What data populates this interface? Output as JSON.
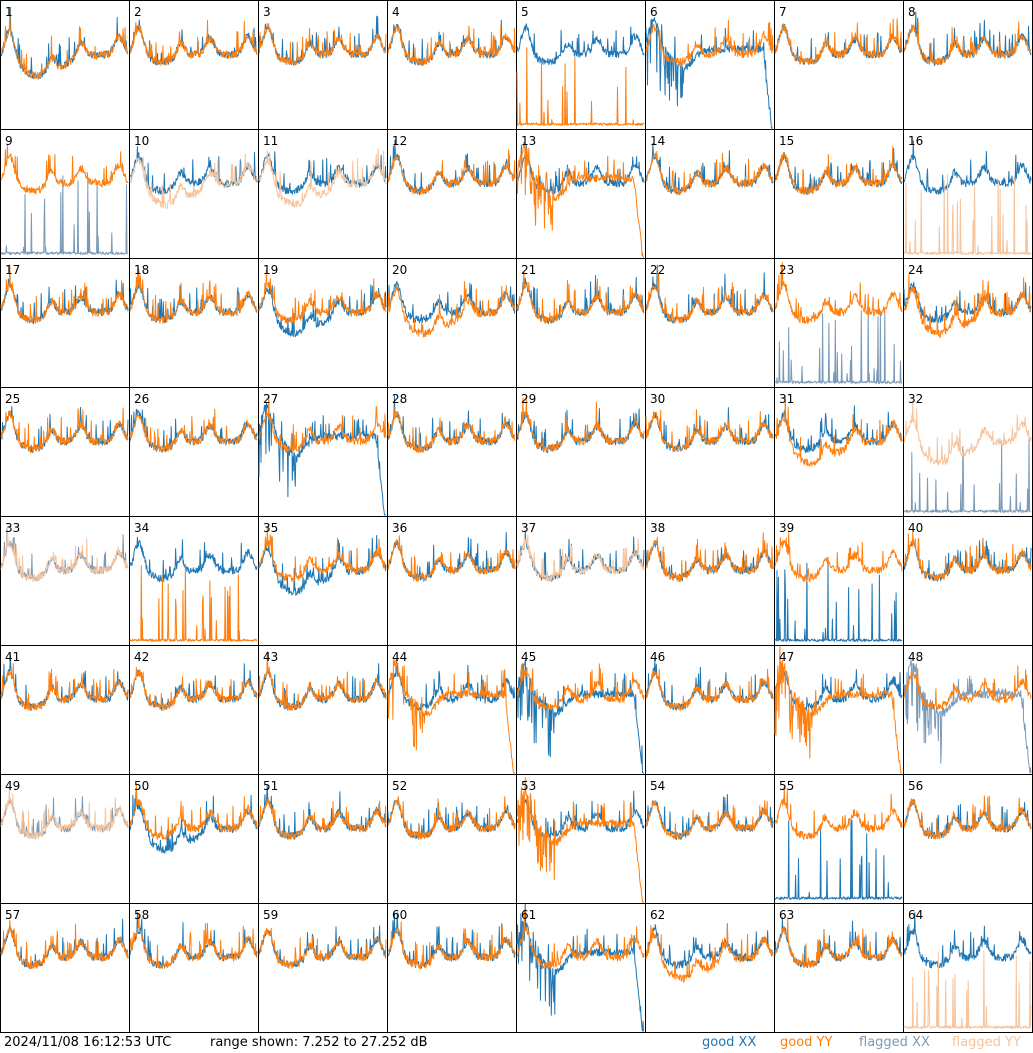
{
  "footer": {
    "timestamp": "2024/11/08 16:12:53 UTC",
    "range_text": "range shown: 7.252 to 27.252 dB"
  },
  "legend": [
    {
      "key": "good_xx",
      "label": "good XX",
      "color": "#1f77b4"
    },
    {
      "key": "good_yy",
      "label": "good YY",
      "color": "#ff7f0e"
    },
    {
      "key": "flagged_xx",
      "label": "flagged XX",
      "color": "#7a9ab8"
    },
    {
      "key": "flagged_yy",
      "label": "flagged YY",
      "color": "#f7c49c"
    }
  ],
  "chart_data": {
    "type": "line",
    "title": "",
    "xlabel": "",
    "ylabel": "",
    "ylim": [
      7.252,
      27.252
    ],
    "grid": "8x8 small multiples",
    "panels": [
      {
        "id": "1",
        "xx": "good",
        "yy": "good",
        "xx_shape": "depressed",
        "yy_shape": "depressed"
      },
      {
        "id": "2",
        "xx": "good",
        "yy": "good"
      },
      {
        "id": "3",
        "xx": "good",
        "yy": "good"
      },
      {
        "id": "4",
        "xx": "good",
        "yy": "good"
      },
      {
        "id": "5",
        "xx": "good",
        "yy": "good",
        "yy_shape": "spikes"
      },
      {
        "id": "6",
        "xx": "good",
        "yy": "good",
        "xx_shape": "decay"
      },
      {
        "id": "7",
        "xx": "good",
        "yy": "good"
      },
      {
        "id": "8",
        "xx": "good",
        "yy": "good"
      },
      {
        "id": "9",
        "xx": "flagged",
        "yy": "good",
        "xx_shape": "spikes"
      },
      {
        "id": "10",
        "xx": "good",
        "yy": "flagged",
        "yy_shape": "depressed"
      },
      {
        "id": "11",
        "xx": "good",
        "yy": "flagged",
        "yy_shape": "depressed"
      },
      {
        "id": "12",
        "xx": "good",
        "yy": "good"
      },
      {
        "id": "13",
        "xx": "good",
        "yy": "good",
        "yy_shape": "decay"
      },
      {
        "id": "14",
        "xx": "good",
        "yy": "good"
      },
      {
        "id": "15",
        "xx": "good",
        "yy": "good"
      },
      {
        "id": "16",
        "xx": "good",
        "yy": "flagged",
        "yy_shape": "spikes"
      },
      {
        "id": "17",
        "xx": "good",
        "yy": "good"
      },
      {
        "id": "18",
        "xx": "good",
        "yy": "good"
      },
      {
        "id": "19",
        "xx": "good",
        "yy": "good",
        "xx_shape": "depressed"
      },
      {
        "id": "20",
        "xx": "good",
        "yy": "good",
        "yy_shape": "depressed"
      },
      {
        "id": "21",
        "xx": "good",
        "yy": "good"
      },
      {
        "id": "22",
        "xx": "good",
        "yy": "good"
      },
      {
        "id": "23",
        "xx": "flagged",
        "yy": "good",
        "xx_shape": "spikes"
      },
      {
        "id": "24",
        "xx": "good",
        "yy": "good",
        "yy_shape": "depressed"
      },
      {
        "id": "25",
        "xx": "good",
        "yy": "good"
      },
      {
        "id": "26",
        "xx": "good",
        "yy": "good"
      },
      {
        "id": "27",
        "xx": "good",
        "yy": "good",
        "xx_shape": "decay"
      },
      {
        "id": "28",
        "xx": "good",
        "yy": "good"
      },
      {
        "id": "29",
        "xx": "good",
        "yy": "good"
      },
      {
        "id": "30",
        "xx": "good",
        "yy": "good"
      },
      {
        "id": "31",
        "xx": "good",
        "yy": "good",
        "yy_shape": "depressed"
      },
      {
        "id": "32",
        "xx": "flagged",
        "yy": "flagged",
        "xx_shape": "spikes",
        "yy_shape": "depressed"
      },
      {
        "id": "33",
        "xx": "flagged",
        "yy": "flagged"
      },
      {
        "id": "34",
        "xx": "good",
        "yy": "good",
        "yy_shape": "spikes"
      },
      {
        "id": "35",
        "xx": "good",
        "yy": "good",
        "xx_shape": "depressed"
      },
      {
        "id": "36",
        "xx": "good",
        "yy": "good"
      },
      {
        "id": "37",
        "xx": "good",
        "yy": "flagged"
      },
      {
        "id": "38",
        "xx": "good",
        "yy": "good"
      },
      {
        "id": "39",
        "xx": "good",
        "yy": "good",
        "xx_shape": "spikes"
      },
      {
        "id": "40",
        "xx": "good",
        "yy": "good"
      },
      {
        "id": "41",
        "xx": "good",
        "yy": "good"
      },
      {
        "id": "42",
        "xx": "good",
        "yy": "good"
      },
      {
        "id": "43",
        "xx": "good",
        "yy": "good"
      },
      {
        "id": "44",
        "xx": "good",
        "yy": "good",
        "yy_shape": "decay"
      },
      {
        "id": "45",
        "xx": "good",
        "yy": "good",
        "xx_shape": "decay"
      },
      {
        "id": "46",
        "xx": "good",
        "yy": "good"
      },
      {
        "id": "47",
        "xx": "good",
        "yy": "good",
        "yy_shape": "decay"
      },
      {
        "id": "48",
        "xx": "flagged",
        "yy": "good",
        "xx_shape": "decay"
      },
      {
        "id": "49",
        "xx": "flagged",
        "yy": "flagged"
      },
      {
        "id": "50",
        "xx": "good",
        "yy": "good",
        "xx_shape": "depressed"
      },
      {
        "id": "51",
        "xx": "good",
        "yy": "good"
      },
      {
        "id": "52",
        "xx": "good",
        "yy": "good"
      },
      {
        "id": "53",
        "xx": "good",
        "yy": "good",
        "yy_shape": "decay"
      },
      {
        "id": "54",
        "xx": "good",
        "yy": "good"
      },
      {
        "id": "55",
        "xx": "good",
        "yy": "good",
        "xx_shape": "spikes"
      },
      {
        "id": "56",
        "xx": "good",
        "yy": "good"
      },
      {
        "id": "57",
        "xx": "good",
        "yy": "good"
      },
      {
        "id": "58",
        "xx": "good",
        "yy": "good"
      },
      {
        "id": "59",
        "xx": "good",
        "yy": "good"
      },
      {
        "id": "60",
        "xx": "good",
        "yy": "good"
      },
      {
        "id": "61",
        "xx": "good",
        "yy": "good",
        "xx_shape": "decay"
      },
      {
        "id": "62",
        "xx": "good",
        "yy": "good",
        "yy_shape": "depressed"
      },
      {
        "id": "63",
        "xx": "good",
        "yy": "good"
      },
      {
        "id": "64",
        "xx": "good",
        "yy": "flagged",
        "yy_shape": "spikes"
      }
    ]
  }
}
